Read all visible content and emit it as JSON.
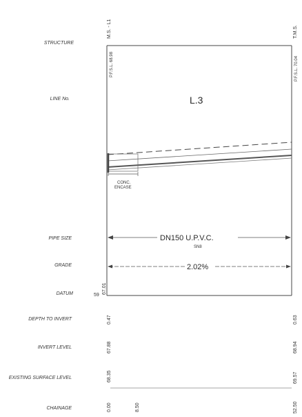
{
  "rows": {
    "structure": "STRUCTURE",
    "line_no": "LINE No.",
    "pipe_size": "PIPE SIZE",
    "grade": "GRADE",
    "datum": "DATUM",
    "depth_to_invert": "DEPTH TO INVERT",
    "invert_level": "INVERT LEVEL",
    "existing_surface_level": "EXISTING SURFACE LEVEL",
    "chainage": "CHAINAGE"
  },
  "structures": {
    "left": "M.S. - L1",
    "right": "T.M.S."
  },
  "pfsl": {
    "left": "P.F.S.L. 68.98",
    "right": "P.F.S.L. 70.04"
  },
  "line_number": "L.3",
  "encase": {
    "line1": "CONC.",
    "line2": "ENCASE"
  },
  "pipe": {
    "size": "DN150 U.P.V.C.",
    "class": "SN8"
  },
  "grade_value": "2.02%",
  "datum": {
    "value": "59",
    "level": "67.01"
  },
  "depth_to_invert": {
    "left": "0.47",
    "right": "0.63"
  },
  "invert_level": {
    "left": "67.88",
    "right": "68.94"
  },
  "existing_surface_level": {
    "left": "68.35",
    "right": "69.57"
  },
  "chainage": {
    "start": "0.00",
    "mid": "8.50",
    "end": "52.50"
  }
}
